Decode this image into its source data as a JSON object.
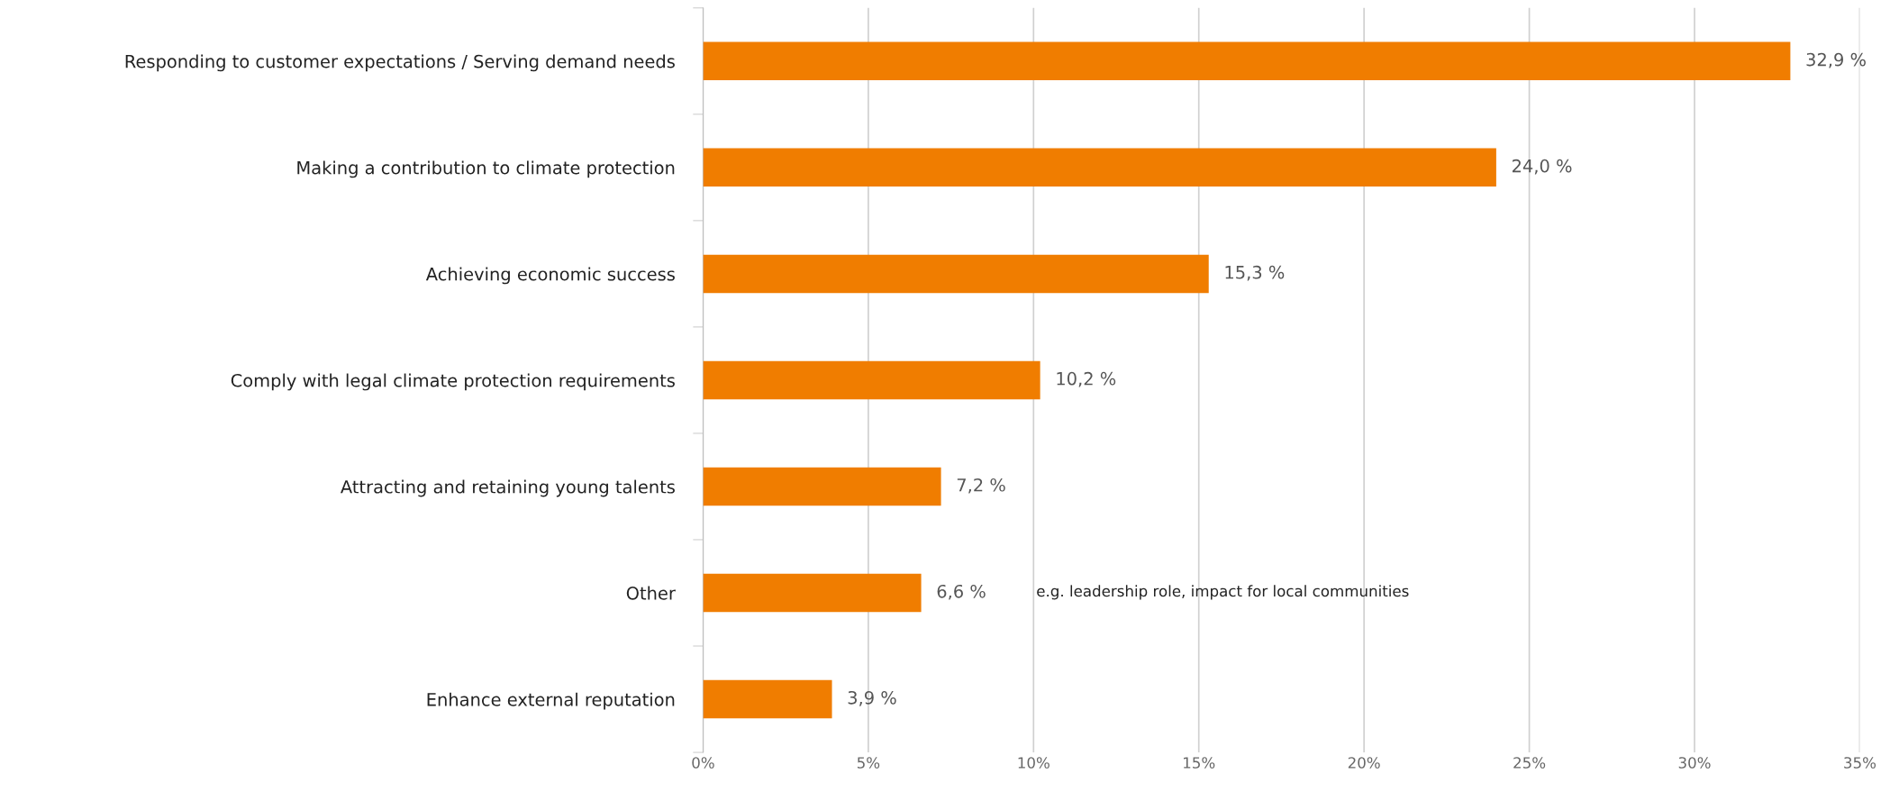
{
  "chart_data": {
    "type": "bar",
    "orientation": "horizontal",
    "categories": [
      "Responding to customer expectations / Serving demand needs",
      "Making a contribution to climate protection",
      "Achieving economic success",
      "Comply with legal climate protection requirements",
      "Attracting and retaining young talents",
      "Other",
      "Enhance external reputation"
    ],
    "values": [
      32.9,
      24.0,
      15.3,
      10.2,
      7.2,
      6.6,
      3.9
    ],
    "value_labels": [
      "32,9 %",
      "24,0 %",
      "15,3 %",
      "10,2 %",
      "7,2 %",
      "6,6 %",
      "3,9 %"
    ],
    "color": "#f07d00",
    "xlim": [
      0,
      35
    ],
    "xticks": [
      {
        "value": 0,
        "label": "0%"
      },
      {
        "value": 5,
        "label": "5%"
      },
      {
        "value": 10,
        "label": "10%"
      },
      {
        "value": 15,
        "label": "15%"
      },
      {
        "value": 20,
        "label": "20%"
      },
      {
        "value": 25,
        "label": "25%"
      },
      {
        "value": 30,
        "label": "30%"
      },
      {
        "value": 35,
        "label": "35%"
      }
    ],
    "grid": "x",
    "annotations": [
      "e.g. leadership role, impact for local communities"
    ]
  }
}
